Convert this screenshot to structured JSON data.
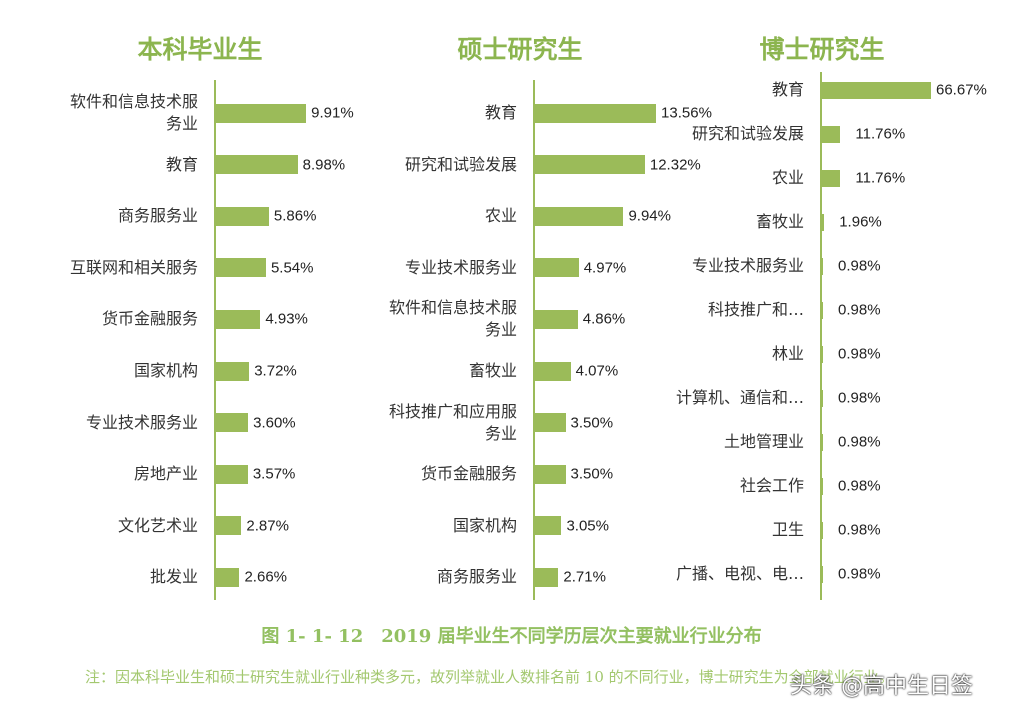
{
  "colors": {
    "bar": "#9bbb59",
    "title": "#8cb54f"
  },
  "chart_data": [
    {
      "type": "bar",
      "orientation": "horizontal",
      "title": "本科毕业生",
      "categories": [
        "软件和信息技术服\n务业",
        "教育",
        "商务服务业",
        "互联网和相关服务",
        "货币金融服务",
        "国家机构",
        "专业技术服务业",
        "房地产业",
        "文化艺术业",
        "批发业"
      ],
      "values": [
        9.91,
        8.98,
        5.86,
        5.54,
        4.93,
        3.72,
        3.6,
        3.57,
        2.87,
        2.66
      ],
      "labels": [
        "9.91%",
        "8.98%",
        "5.86%",
        "5.54%",
        "4.93%",
        "3.72%",
        "3.60%",
        "3.57%",
        "2.87%",
        "2.66%"
      ]
    },
    {
      "type": "bar",
      "orientation": "horizontal",
      "title": "硕士研究生",
      "categories": [
        "教育",
        "研究和试验发展",
        "农业",
        "专业技术服务业",
        "软件和信息技术服\n务业",
        "畜牧业",
        "科技推广和应用服\n务业",
        "货币金融服务",
        "国家机构",
        "商务服务业"
      ],
      "values": [
        13.56,
        12.32,
        9.94,
        4.97,
        4.86,
        4.07,
        3.5,
        3.5,
        3.05,
        2.71
      ],
      "labels": [
        "13.56%",
        "12.32%",
        "9.94%",
        "4.97%",
        "4.86%",
        "4.07%",
        "3.50%",
        "3.50%",
        "3.05%",
        "2.71%"
      ]
    },
    {
      "type": "bar",
      "orientation": "horizontal",
      "title": "博士研究生",
      "categories": [
        "教育",
        "研究和试验发展",
        "农业",
        "畜牧业",
        "专业技术服务业",
        "科技推广和…",
        "林业",
        "计算机、通信和…",
        "土地管理业",
        "社会工作",
        "卫生",
        "广播、电视、电…"
      ],
      "values": [
        66.67,
        11.76,
        11.76,
        1.96,
        0.98,
        0.98,
        0.98,
        0.98,
        0.98,
        0.98,
        0.98,
        0.98
      ],
      "labels": [
        "66.67%",
        "11.76%",
        "11.76%",
        "1.96%",
        "0.98%",
        "0.98%",
        "0.98%",
        "0.98%",
        "0.98%",
        "0.98%",
        "0.98%",
        "0.98%"
      ]
    }
  ],
  "caption": "图 1- 1- 12　2019 届毕业生不同学历层次主要就业行业分布",
  "note": "注：因本科毕业生和硕士研究生就业行业种类多元，故列举就业人数排名前 10 的不同行业，博士研究生为全部就业行业。",
  "watermark": "头条 @高中生日签"
}
